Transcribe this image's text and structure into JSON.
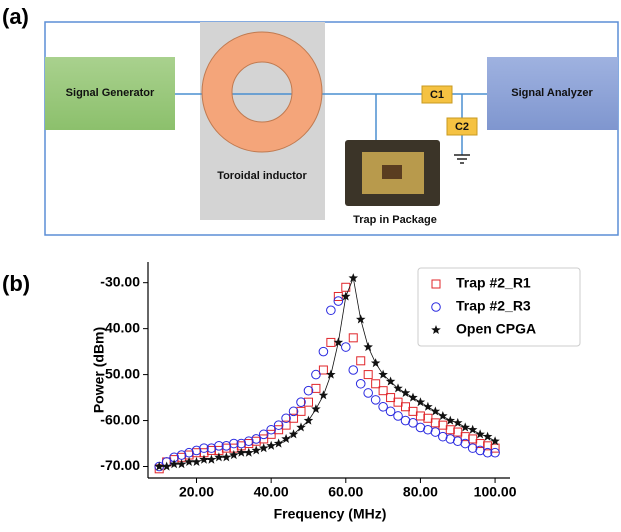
{
  "diagram": {
    "label": "(a)",
    "nodes": [
      {
        "label": "Signal Generator"
      },
      {
        "label": "Toroidal inductor"
      },
      {
        "label": "Trap in Package"
      },
      {
        "label": "C1"
      },
      {
        "label": "C2"
      },
      {
        "label": "Signal Analyzer"
      }
    ]
  },
  "chart_data": {
    "type": "scatter",
    "label": "(b)",
    "x_label": "Frequency (MHz)",
    "y_label": "Power (dBm)",
    "xlim": [
      7,
      104
    ],
    "ylim": [
      -72.5,
      -25.5
    ],
    "xticks": [
      {
        "value": 20,
        "label": "20.00"
      },
      {
        "value": 40,
        "label": "40.00"
      },
      {
        "value": 60,
        "label": "60.00"
      },
      {
        "value": 80,
        "label": "80.00"
      },
      {
        "value": 100,
        "label": "100.00"
      }
    ],
    "yticks": [
      {
        "value": -70,
        "label": "-70.00"
      },
      {
        "value": -60,
        "label": "-60.00"
      },
      {
        "value": -50,
        "label": "-50.00"
      },
      {
        "value": -40,
        "label": "-40.00"
      },
      {
        "value": -30,
        "label": "-30.00"
      }
    ],
    "legend": "upper right",
    "x": [
      10,
      12,
      14,
      16,
      18,
      20,
      22,
      24,
      26,
      28,
      30,
      32,
      34,
      36,
      38,
      40,
      42,
      44,
      46,
      48,
      50,
      52,
      54,
      56,
      58,
      60,
      62,
      64,
      66,
      68,
      70,
      72,
      74,
      76,
      78,
      80,
      82,
      84,
      86,
      88,
      90,
      92,
      94,
      96,
      98,
      100
    ],
    "series": [
      {
        "name": "Trap #2_R1",
        "color": "#e0252a",
        "marker": "square",
        "values": [
          -70.5,
          -69,
          -68.5,
          -68,
          -67.5,
          -67,
          -67,
          -66.5,
          -66.5,
          -66,
          -66,
          -65.5,
          -65,
          -64.5,
          -64,
          -63,
          -62,
          -61,
          -59.5,
          -58,
          -56,
          -53,
          -49,
          -43,
          -33,
          -31,
          -42,
          -47,
          -50,
          -52,
          -53.5,
          -55,
          -56,
          -57,
          -58,
          -59,
          -59.5,
          -60.5,
          -61,
          -62,
          -62.5,
          -63.5,
          -64,
          -65,
          -65.5,
          -66
        ]
      },
      {
        "name": "Trap #2_R3",
        "color": "#2a2ae0",
        "marker": "circle",
        "values": [
          -70,
          -69,
          -68,
          -67.5,
          -67,
          -66.5,
          -66,
          -66,
          -65.5,
          -65.5,
          -65,
          -65,
          -64.5,
          -64,
          -63,
          -62,
          -61,
          -59.5,
          -58,
          -56,
          -53.5,
          -50,
          -45,
          -36,
          -34,
          -44,
          -49,
          -52,
          -54,
          -55.5,
          -57,
          -58,
          -59,
          -60,
          -60.5,
          -61.5,
          -62,
          -62.5,
          -63.5,
          -64,
          -64.5,
          -65,
          -66,
          -66.5,
          -67,
          -67
        ]
      },
      {
        "name": "Open CPGA",
        "color": "#111111",
        "marker": "star",
        "line": true,
        "values": [
          -70,
          -70,
          -69.5,
          -69.5,
          -69,
          -69,
          -68.5,
          -68.5,
          -68,
          -68,
          -67.5,
          -67,
          -67,
          -66.5,
          -66,
          -65.5,
          -65,
          -64,
          -63,
          -61.5,
          -60,
          -57.5,
          -54.5,
          -50,
          -43,
          -33,
          -29,
          -38,
          -44,
          -47.5,
          -50,
          -51.5,
          -53,
          -54,
          -55,
          -56,
          -57,
          -58,
          -59,
          -60,
          -60.5,
          -61.5,
          -62,
          -63,
          -63.5,
          -64.5
        ]
      }
    ]
  }
}
